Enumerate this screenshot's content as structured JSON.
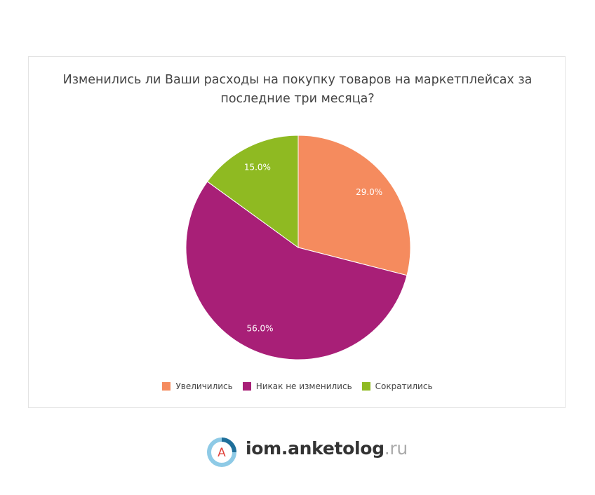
{
  "chart_data": {
    "type": "pie",
    "title": "Изменились ли Ваши расходы на покупку товаров на маркетплейсах за последние три месяца?",
    "categories": [
      "Увеличились",
      "Никак не изменились",
      "Сократились"
    ],
    "values": [
      29,
      56,
      15
    ],
    "value_labels": [
      "29.0%",
      "56.0%",
      "15.0%"
    ],
    "colors": [
      "#f58b5e",
      "#a81f77",
      "#8fba22"
    ],
    "legend": "bottom"
  },
  "footer": {
    "logo_letter": "А",
    "brand": "iom.anketolog",
    "tld": ".ru"
  }
}
